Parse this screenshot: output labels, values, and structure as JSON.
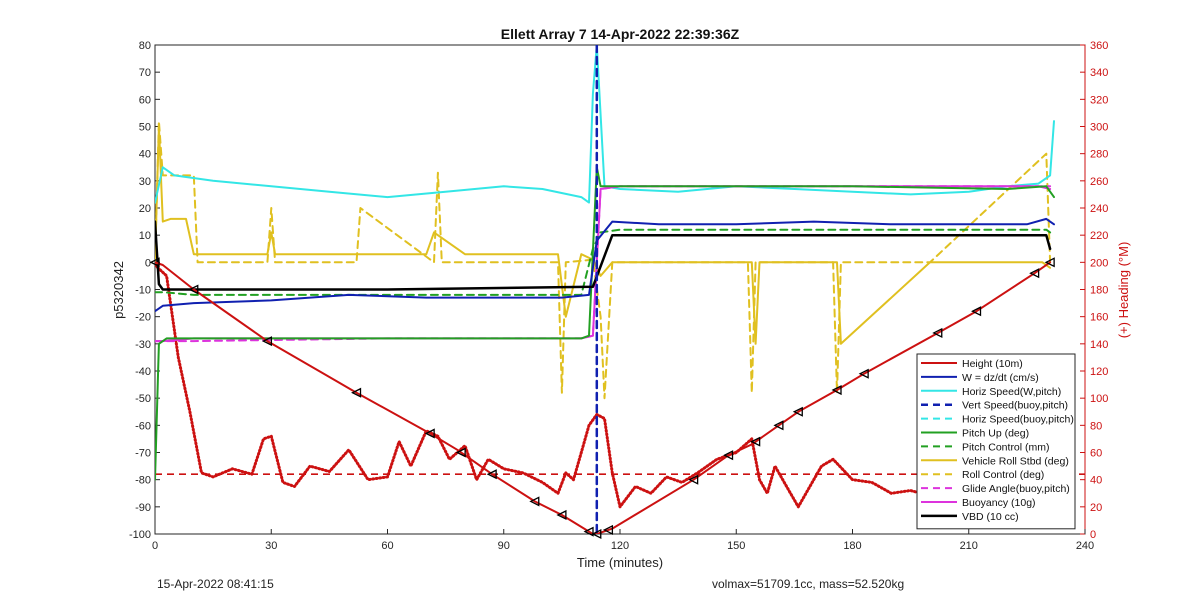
{
  "footer": {
    "date_text": "15-Apr-2022 08:41:15",
    "stats_text": "volmax=51709.1cc, mass=52.520kg"
  },
  "chart_data": {
    "type": "line",
    "title": "Ellett Array 7 14-Apr-2022 22:39:36Z",
    "xlabel": "Time (minutes)",
    "ylabel_left": "p5320342",
    "ylabel_right": "(+) Heading (°M)",
    "xlim": [
      0,
      240
    ],
    "ylim_left": [
      -100,
      80
    ],
    "ylim_right": [
      0,
      360
    ],
    "xticks": [
      0,
      30,
      60,
      90,
      120,
      150,
      180,
      210,
      240
    ],
    "yticks_left": [
      -100,
      -90,
      -80,
      -70,
      -60,
      -50,
      -40,
      -30,
      -20,
      -10,
      0,
      10,
      20,
      30,
      40,
      50,
      60,
      70,
      80
    ],
    "yticks_right": [
      0,
      20,
      40,
      60,
      80,
      100,
      120,
      140,
      160,
      180,
      200,
      220,
      240,
      260,
      280,
      300,
      320,
      340,
      360
    ],
    "legend_position": "bottom-right",
    "colors": {
      "height": "#cc1111",
      "w": "#1020b0",
      "horiz": "#33e6e6",
      "pitch": "#22a022",
      "roll": "#e0c020",
      "buoy": "#dd33dd",
      "vbd": "#000000",
      "heading": "#cc1111"
    },
    "series": [
      {
        "name": "Height (10m)",
        "axis": "left",
        "x": [
          0,
          2,
          10,
          29,
          52,
          71,
          78,
          87,
          98,
          105,
          113,
          114,
          116,
          118,
          139,
          148,
          154,
          161,
          166,
          176,
          183,
          202,
          212,
          227,
          231
        ],
        "y": [
          0,
          -1,
          -10,
          -29,
          -48,
          -63,
          -69,
          -78,
          -88,
          -93,
          -100,
          -100,
          -99,
          -98,
          -80,
          -71,
          -67,
          -60,
          -55,
          -47,
          -41,
          -26,
          -18,
          -4,
          0
        ]
      },
      {
        "name": "W = dz/dt (cm/s)",
        "axis": "left",
        "x": [
          0,
          2,
          10,
          30,
          50,
          70,
          90,
          105,
          112,
          114,
          118,
          130,
          150,
          170,
          190,
          210,
          225,
          230,
          232
        ],
        "y": [
          -18,
          -16,
          -15,
          -14,
          -12,
          -13,
          -13,
          -13,
          -12,
          8,
          15,
          14,
          14,
          15,
          14,
          14,
          14,
          16,
          14
        ]
      },
      {
        "name": "Horiz Speed(W,pitch)",
        "axis": "left",
        "x": [
          0,
          2,
          5,
          15,
          30,
          45,
          60,
          75,
          90,
          100,
          110,
          112,
          113,
          114,
          116,
          120,
          135,
          150,
          165,
          180,
          195,
          210,
          220,
          228,
          231,
          232
        ],
        "y": [
          22,
          35,
          32,
          30,
          28,
          26,
          24,
          26,
          28,
          27,
          24,
          22,
          62,
          80,
          28,
          27,
          26,
          28,
          27,
          26,
          25,
          26,
          28,
          29,
          32,
          52
        ]
      },
      {
        "name": "Vert Speed(buoy,pitch)",
        "axis": "left",
        "x": [
          114,
          114
        ],
        "y": [
          80,
          -100
        ]
      },
      {
        "name": "Horiz Speed(buoy,pitch)",
        "axis": "left",
        "x": [
          0,
          0
        ],
        "y": [
          0,
          0
        ]
      },
      {
        "name": "Pitch Up (deg)",
        "axis": "left",
        "x": [
          0,
          1,
          3,
          10,
          30,
          60,
          90,
          110,
          112,
          114,
          115,
          118,
          140,
          180,
          220,
          230,
          232
        ],
        "y": [
          -80,
          -30,
          -28,
          -28,
          -28,
          -28,
          -28,
          -28,
          -27,
          35,
          28,
          28,
          28,
          28,
          27,
          28,
          24
        ]
      },
      {
        "name": "Pitch Control (mm)",
        "axis": "left",
        "x": [
          0,
          2,
          10,
          60,
          110,
          113,
          115,
          120,
          180,
          230,
          231
        ],
        "y": [
          -11,
          -11,
          -12,
          -12,
          -12,
          5,
          11,
          12,
          12,
          12,
          11
        ]
      },
      {
        "name": "Vehicle Roll Stbd (deg)",
        "axis": "left",
        "x": [
          0,
          1,
          2,
          4,
          8,
          10,
          20,
          29,
          30,
          31,
          50,
          52,
          70,
          72,
          80,
          90,
          104,
          106,
          110,
          113,
          115,
          118,
          130,
          150,
          154,
          155,
          156,
          170,
          176,
          177,
          200,
          220,
          229,
          231
        ],
        "y": [
          0,
          50,
          15,
          16,
          16,
          3,
          3,
          3,
          11,
          3,
          3,
          3,
          3,
          11,
          3,
          3,
          3,
          -20,
          3,
          1,
          -5,
          0,
          0,
          0,
          0,
          -30,
          0,
          0,
          0,
          -30,
          0,
          0,
          0,
          -2
        ]
      },
      {
        "name": "Roll Control (deg)",
        "axis": "left",
        "x": [
          0,
          1,
          2,
          10,
          11,
          20,
          29,
          30,
          31,
          52,
          53,
          72,
          73,
          74,
          104,
          105,
          106,
          113,
          115,
          116,
          118,
          140,
          153,
          154,
          155,
          175,
          176,
          177,
          200,
          230,
          231
        ],
        "y": [
          0,
          52,
          32,
          32,
          0,
          0,
          0,
          20,
          0,
          0,
          20,
          0,
          33,
          0,
          0,
          -48,
          0,
          1,
          -20,
          -50,
          0,
          0,
          0,
          -48,
          0,
          0,
          -48,
          0,
          0,
          40,
          0
        ]
      },
      {
        "name": "Glide Angle(buoy,pitch)",
        "axis": "left",
        "x": [
          0,
          2,
          10,
          60,
          110,
          113,
          115,
          120,
          180,
          228,
          231
        ],
        "y": [
          -29,
          -29,
          -29,
          -28,
          -28,
          -27,
          27,
          28,
          28,
          28,
          28
        ]
      },
      {
        "name": "Buoyancy (10g)",
        "axis": "left",
        "x": [
          0,
          2,
          10,
          60,
          110,
          113,
          115,
          120,
          180,
          228,
          231
        ],
        "y": [
          -29,
          -29,
          -28,
          -28,
          -28,
          -27,
          27,
          28,
          28,
          28,
          27
        ]
      },
      {
        "name": "VBD (10 cc)",
        "axis": "left",
        "x": [
          0,
          1,
          2,
          10,
          60,
          113,
          118,
          230,
          231
        ],
        "y": [
          15,
          -8,
          -10,
          -10,
          -10,
          -9,
          10,
          10,
          5
        ]
      },
      {
        "name": "Heading (°M)",
        "axis": "right",
        "x": [
          0,
          3,
          6,
          9,
          12,
          15,
          20,
          25,
          28,
          30,
          33,
          36,
          40,
          45,
          50,
          55,
          60,
          63,
          66,
          70,
          73,
          76,
          80,
          83,
          86,
          90,
          95,
          100,
          104,
          106,
          108,
          110,
          112,
          114,
          116,
          118,
          120,
          124,
          128,
          132,
          136,
          140,
          145,
          150,
          154,
          156,
          158,
          160,
          163,
          166,
          168,
          172,
          175,
          180,
          185,
          190,
          195,
          200,
          205,
          210,
          215,
          220,
          225,
          228,
          231
        ],
        "y": [
          198,
          190,
          130,
          90,
          45,
          42,
          48,
          44,
          70,
          72,
          38,
          35,
          50,
          46,
          62,
          40,
          42,
          68,
          50,
          76,
          72,
          55,
          65,
          40,
          55,
          48,
          45,
          38,
          30,
          45,
          40,
          60,
          80,
          88,
          85,
          45,
          20,
          35,
          30,
          42,
          38,
          45,
          55,
          60,
          70,
          40,
          30,
          50,
          35,
          20,
          30,
          50,
          55,
          40,
          38,
          30,
          32,
          28,
          30,
          35,
          28,
          35,
          38,
          45,
          30
        ]
      }
    ],
    "reference_lines": [
      {
        "axis": "left",
        "orientation": "horizontal",
        "y": -78,
        "style": "dashed",
        "color": "#cc1111"
      }
    ],
    "markers": {
      "note": "arrow-shaped direction markers along Height (10m)",
      "x": [
        0,
        10,
        29,
        52,
        71,
        79,
        87,
        98,
        105,
        112,
        114,
        117,
        139,
        148,
        155,
        161,
        166,
        176,
        183,
        202,
        212,
        227,
        231
      ]
    }
  }
}
